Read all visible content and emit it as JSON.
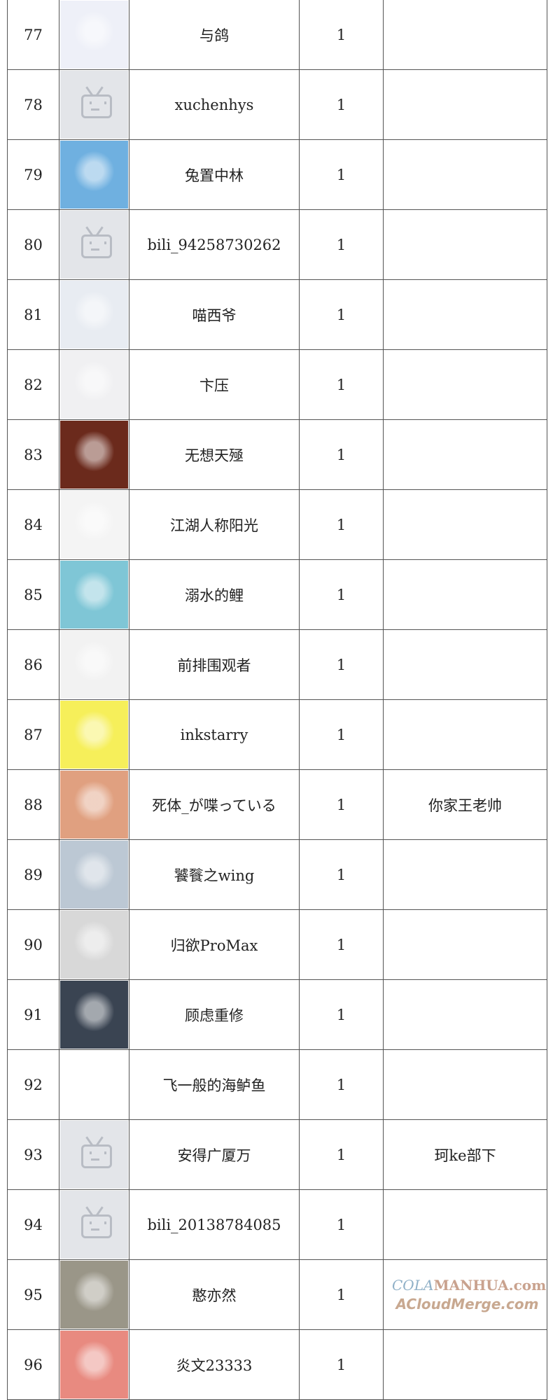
{
  "rows": [
    {
      "rank": "77",
      "name": "与鸽",
      "count": "1",
      "note": "",
      "avatar": "anime-girl-white-hair",
      "color": "#eef0f8"
    },
    {
      "rank": "78",
      "name": "xuchenhys",
      "count": "1",
      "note": "",
      "avatar": "bilibili-default-tv",
      "color": ""
    },
    {
      "rank": "79",
      "name": "兔置中林",
      "count": "1",
      "note": "",
      "avatar": "anime-blue-hair",
      "color": "#6fb0e0"
    },
    {
      "rank": "80",
      "name": "bili_94258730262",
      "count": "1",
      "note": "",
      "avatar": "bilibili-default-tv",
      "color": ""
    },
    {
      "rank": "81",
      "name": "喵西爷",
      "count": "1",
      "note": "",
      "avatar": "anime-boy-dark-hair",
      "color": "#e8ecf2"
    },
    {
      "rank": "82",
      "name": "卞压",
      "count": "1",
      "note": "",
      "avatar": "anime-white-hair-red-eyes",
      "color": "#f0f0f2"
    },
    {
      "rank": "83",
      "name": "无想天殛",
      "count": "1",
      "note": "",
      "avatar": "dark-armored-warrior",
      "color": "#6b2a1c"
    },
    {
      "rank": "84",
      "name": "江湖人称阳光",
      "count": "1",
      "note": "",
      "avatar": "cartoon-man-glasses",
      "color": "#f4f4f4"
    },
    {
      "rank": "85",
      "name": "溺水的鲤",
      "count": "1",
      "note": "",
      "avatar": "anime-rem-blue-hair",
      "color": "#7fc6d6"
    },
    {
      "rank": "86",
      "name": "前排围观者",
      "count": "1",
      "note": "",
      "avatar": "panda-meme",
      "color": "#f2f2f2"
    },
    {
      "rank": "87",
      "name": "inkstarry",
      "count": "1",
      "note": "",
      "avatar": "ir-logo-yellow",
      "color": "#f6ef5a"
    },
    {
      "rank": "88",
      "name": "死体_が喋っている",
      "count": "1",
      "note": "你家王老帅",
      "avatar": "anime-red-hair",
      "color": "#e0a080"
    },
    {
      "rank": "89",
      "name": "饕餮之wing",
      "count": "1",
      "note": "",
      "avatar": "figure-helmet",
      "color": "#bcc8d4"
    },
    {
      "rank": "90",
      "name": "归欲ProMax",
      "count": "1",
      "note": "",
      "avatar": "manga-couple",
      "color": "#d8d8d8"
    },
    {
      "rank": "91",
      "name": "顾虑重修",
      "count": "1",
      "note": "",
      "avatar": "night-street-scene",
      "color": "#3a4452"
    },
    {
      "rank": "92",
      "name": "飞一般的海鲈鱼",
      "count": "1",
      "note": "",
      "avatar": "",
      "color": ""
    },
    {
      "rank": "93",
      "name": "安得广厦万",
      "count": "1",
      "note": "珂ke部下",
      "avatar": "bilibili-default-tv",
      "color": ""
    },
    {
      "rank": "94",
      "name": "bili_20138784085",
      "count": "1",
      "note": "",
      "avatar": "bilibili-default-tv",
      "color": ""
    },
    {
      "rank": "95",
      "name": "憨亦然",
      "count": "1",
      "note": "",
      "avatar": "sunset-sky",
      "color": "#9a9688"
    },
    {
      "rank": "96",
      "name": "炎文23333",
      "count": "1",
      "note": "",
      "avatar": "anime-white-hair-red",
      "color": "#e88a80"
    }
  ],
  "watermark": {
    "line1a": "COLA",
    "line1b": "MANHUA.com",
    "line2": "ACloudMerge.com"
  }
}
